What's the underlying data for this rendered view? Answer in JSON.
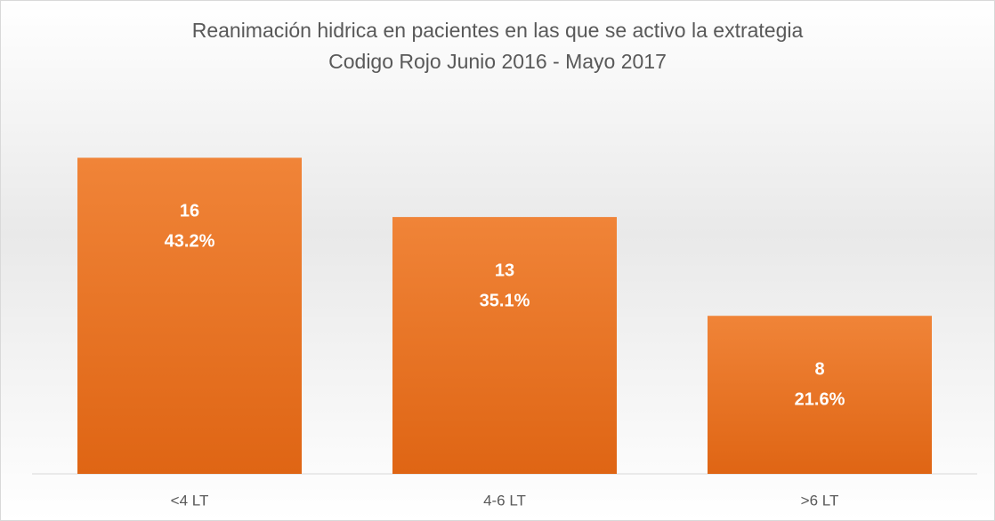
{
  "chart_data": {
    "type": "bar",
    "title": "Reanimación hidrica en pacientes en las que se activo la extrategia",
    "subtitle": "Codigo Rojo Junio 2016 - Mayo 2017",
    "categories": [
      "<4 LT",
      "4-6 LT",
      ">6 LT"
    ],
    "values": [
      16,
      13,
      8
    ],
    "percentage_labels": [
      "43.2%",
      "35.1%",
      "21.6%"
    ],
    "color": "#ed7d31",
    "ylim": [
      0,
      18
    ],
    "grid": false
  }
}
